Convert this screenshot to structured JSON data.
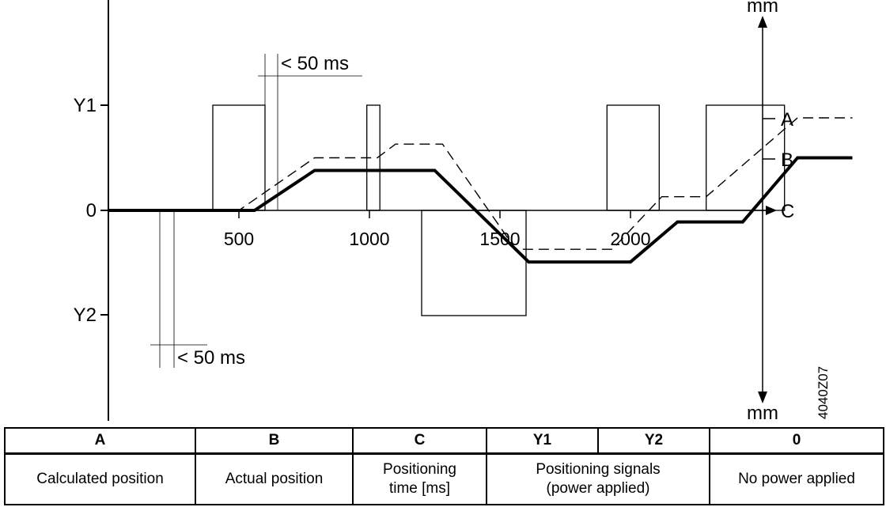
{
  "chart_data": {
    "type": "line",
    "y_axis_labels": {
      "top": "Y1",
      "zero": "0",
      "bottom": "Y2"
    },
    "x_ticks": [
      {
        "value": 500,
        "label": "500"
      },
      {
        "value": 1000,
        "label": "1000"
      },
      {
        "value": 1500,
        "label": "1500"
      },
      {
        "value": 2000,
        "label": "2000"
      }
    ],
    "right_axis_unit": "mm",
    "right_axis_unit_bottom": "mm",
    "curve_labels": {
      "A": "A",
      "B": "B",
      "C": "C"
    },
    "annotations": {
      "upper_time": "< 50 ms",
      "lower_time": "< 50 ms",
      "code": "4040Z07"
    },
    "signal_pulses": [
      {
        "channel": "Y1",
        "start": 400,
        "end": 600
      },
      {
        "channel": "Y1",
        "start": 990,
        "end": 1040
      },
      {
        "channel": "Y2",
        "start": 1200,
        "end": 1600
      },
      {
        "channel": "Y1",
        "start": 1910,
        "end": 2110
      },
      {
        "channel": "Y1",
        "start": 2290,
        "end": 2590
      }
    ],
    "series": [
      {
        "name": "A",
        "style": "dashed",
        "points": [
          [
            0,
            0
          ],
          [
            500,
            0
          ],
          [
            790,
            0.5
          ],
          [
            1030,
            0.5
          ],
          [
            1100,
            0.63
          ],
          [
            1280,
            0.63
          ],
          [
            1560,
            -0.37
          ],
          [
            1930,
            -0.37
          ],
          [
            2120,
            0.13
          ],
          [
            2290,
            0.13
          ],
          [
            2640,
            0.88
          ],
          [
            2850,
            0.88
          ]
        ]
      },
      {
        "name": "B",
        "style": "solid-bold",
        "points": [
          [
            0,
            0
          ],
          [
            560,
            0
          ],
          [
            790,
            0.38
          ],
          [
            1250,
            0.38
          ],
          [
            1610,
            -0.49
          ],
          [
            2000,
            -0.49
          ],
          [
            2180,
            -0.11
          ],
          [
            2430,
            -0.11
          ],
          [
            2640,
            0.5
          ],
          [
            2850,
            0.5
          ]
        ]
      }
    ]
  },
  "legend_table": {
    "headers": [
      "A",
      "B",
      "C",
      "Y1",
      "Y2",
      "0"
    ],
    "descriptions": {
      "a": "Calculated position",
      "b": "Actual position",
      "c_line1": "Positioning",
      "c_line2": "time [ms]",
      "y_line1": "Positioning signals",
      "y_line2": "(power applied)",
      "zero": "No power applied"
    }
  }
}
